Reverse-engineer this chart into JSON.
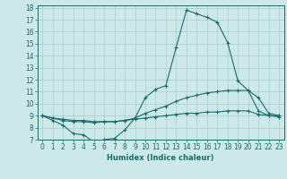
{
  "xlabel": "Humidex (Indice chaleur)",
  "background_color": "#cde8e8",
  "line_color": "#1a6b6b",
  "grid_color": "#aacccc",
  "x_values": [
    0,
    1,
    2,
    3,
    4,
    5,
    6,
    7,
    8,
    9,
    10,
    11,
    12,
    13,
    14,
    15,
    16,
    17,
    18,
    19,
    20,
    21,
    22,
    23
  ],
  "line1": [
    9.0,
    8.6,
    8.2,
    7.5,
    7.4,
    6.8,
    7.0,
    7.1,
    7.8,
    8.8,
    10.5,
    11.2,
    11.5,
    14.7,
    17.8,
    17.5,
    17.2,
    16.8,
    15.1,
    11.9,
    11.1,
    9.4,
    9.0,
    9.0
  ],
  "line2": [
    9.0,
    8.8,
    8.6,
    8.5,
    8.5,
    8.4,
    8.5,
    8.5,
    8.6,
    8.8,
    9.2,
    9.5,
    9.8,
    10.2,
    10.5,
    10.7,
    10.9,
    11.0,
    11.1,
    11.1,
    11.1,
    10.5,
    9.2,
    9.0
  ],
  "line3": [
    9.0,
    8.8,
    8.7,
    8.6,
    8.6,
    8.5,
    8.5,
    8.5,
    8.6,
    8.7,
    8.8,
    8.9,
    9.0,
    9.1,
    9.2,
    9.2,
    9.3,
    9.3,
    9.4,
    9.4,
    9.4,
    9.1,
    9.0,
    8.9
  ],
  "ylim": [
    7,
    18
  ],
  "xlim": [
    -0.5,
    23.5
  ],
  "yticks": [
    7,
    8,
    9,
    10,
    11,
    12,
    13,
    14,
    15,
    16,
    17,
    18
  ],
  "xticks": [
    0,
    1,
    2,
    3,
    4,
    5,
    6,
    7,
    8,
    9,
    10,
    11,
    12,
    13,
    14,
    15,
    16,
    17,
    18,
    19,
    20,
    21,
    22,
    23
  ]
}
